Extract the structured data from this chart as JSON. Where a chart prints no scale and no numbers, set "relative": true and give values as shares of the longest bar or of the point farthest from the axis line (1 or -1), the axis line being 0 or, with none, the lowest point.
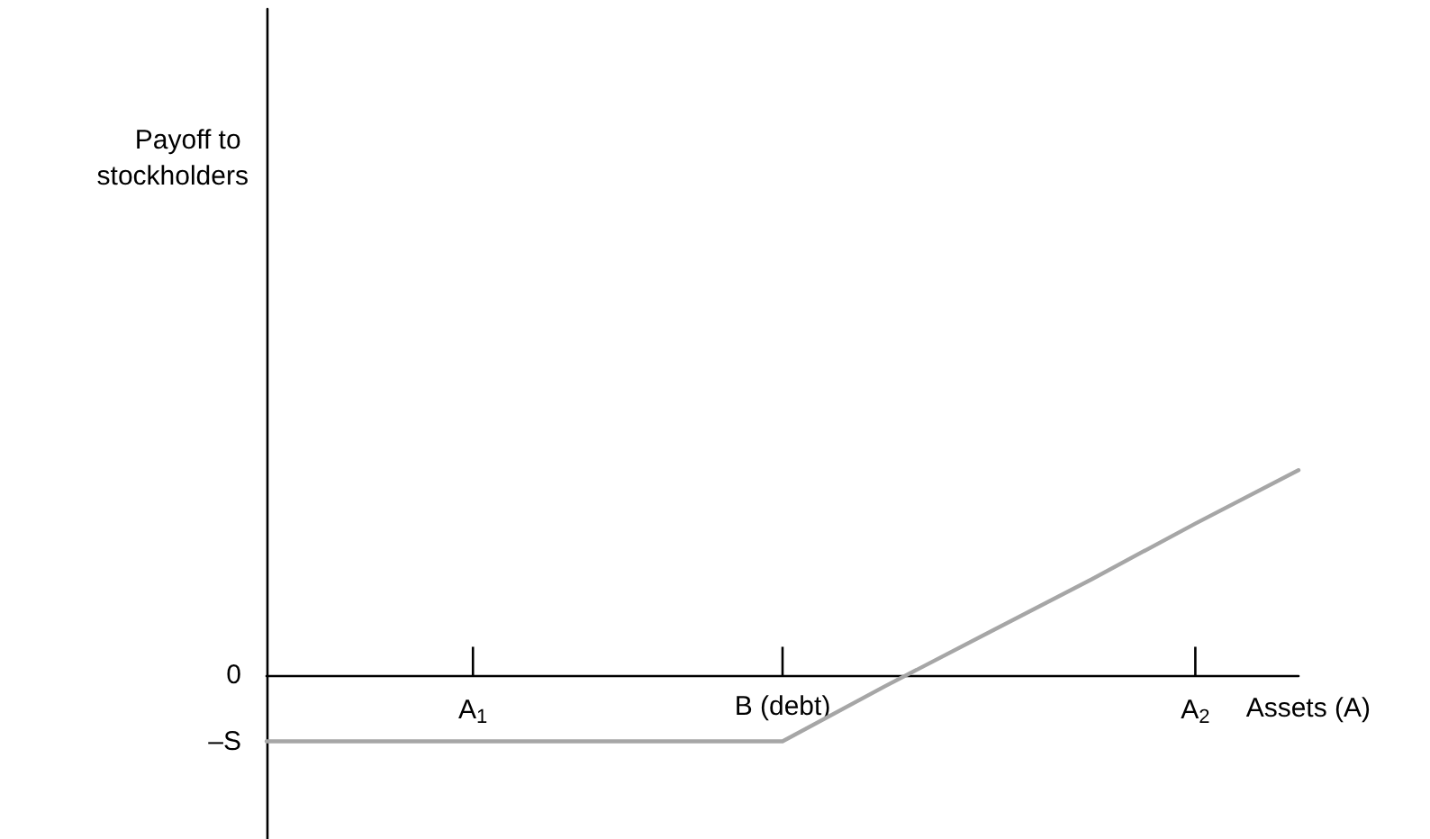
{
  "chart_data": {
    "type": "line",
    "relative": true,
    "xlabel": "Assets (A)",
    "categories": [
      null,
      null,
      "A$_{1}$",
      null,
      null,
      "B (debt)",
      null,
      null,
      null,
      "A$_{2}$",
      null
    ],
    "series": [
      {
        "color": "#a6a6a6",
        "values": [
          -0.32,
          -0.32,
          -0.32,
          -0.32,
          -0.32,
          -0.32,
          -0.05,
          0.21,
          0.47,
          0.74,
          1
        ]
      }
    ],
    "annotations": [
      "Payoff to stockholders",
      "0",
      "–S"
    ],
    "grid": false,
    "marker": "none",
    "line_style": "solid"
  }
}
